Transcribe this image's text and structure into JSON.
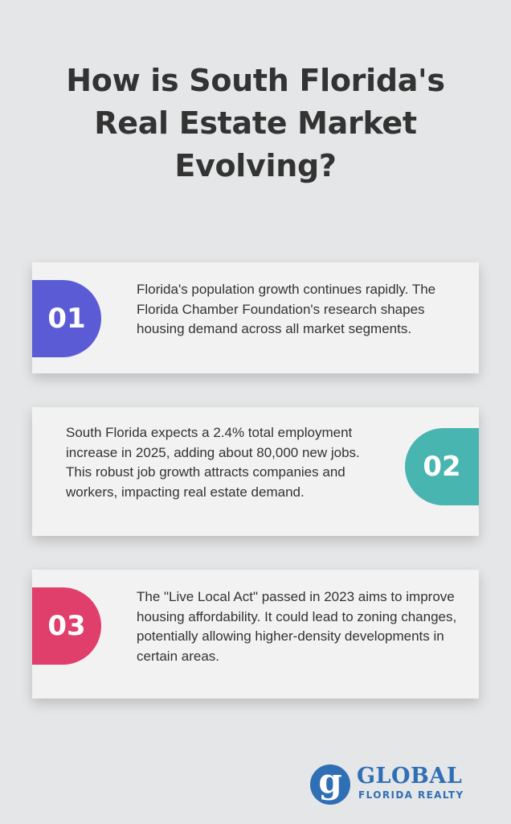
{
  "header": {
    "title_lines": [
      "How is South Florida's",
      "Real Estate Market",
      "Evolving?"
    ]
  },
  "cards": [
    {
      "number": "01",
      "text": "Florida's population growth continues rapidly. The Florida Chamber Foundation's research shapes housing demand across all market segments.",
      "badge_color": "#5b5bd6"
    },
    {
      "number": "02",
      "text": "South Florida expects a 2.4% total employment increase in 2025, adding about 80,000 new jobs. This robust job growth attracts companies and workers, impacting real estate demand.",
      "badge_color": "#48b5b0"
    },
    {
      "number": "03",
      "text": "The \"Live Local Act\" passed in 2023 aims to improve housing affordability. It could lead to zoning changes, potentially allowing higher-density developments in certain areas.",
      "badge_color": "#e03e6b"
    }
  ],
  "logo": {
    "mark": "g",
    "name": "GLOBAL",
    "tagline": "FLORIDA REALTY",
    "color": "#2f6fb5"
  }
}
